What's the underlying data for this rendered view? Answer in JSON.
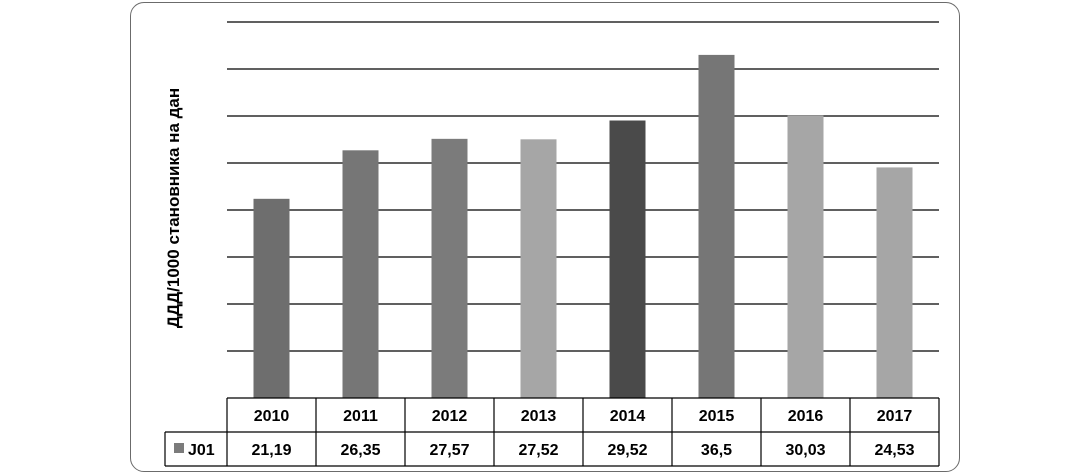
{
  "chart_data": {
    "type": "bar",
    "ylabel": "ДДД/1000 становника на дан",
    "categories": [
      "2010",
      "2011",
      "2012",
      "2013",
      "2014",
      "2015",
      "2016",
      "2017"
    ],
    "series": [
      {
        "name": "J01",
        "values": [
          21.19,
          26.35,
          27.57,
          27.52,
          29.52,
          36.5,
          30.03,
          24.53
        ]
      }
    ],
    "value_labels": [
      "21,19",
      "26,35",
      "27,57",
      "27,52",
      "29,52",
      "36,5",
      "30,03",
      "24,53"
    ],
    "bar_colors": [
      "#6e6e6e",
      "#767676",
      "#7b7b7b",
      "#a6a6a6",
      "#4a4a4a",
      "#767676",
      "#a6a6a6",
      "#a6a6a6"
    ],
    "legend_color": "#7b7b7b",
    "ylim": [
      0,
      40
    ],
    "grid": true,
    "legend_position": "data table, left column"
  }
}
